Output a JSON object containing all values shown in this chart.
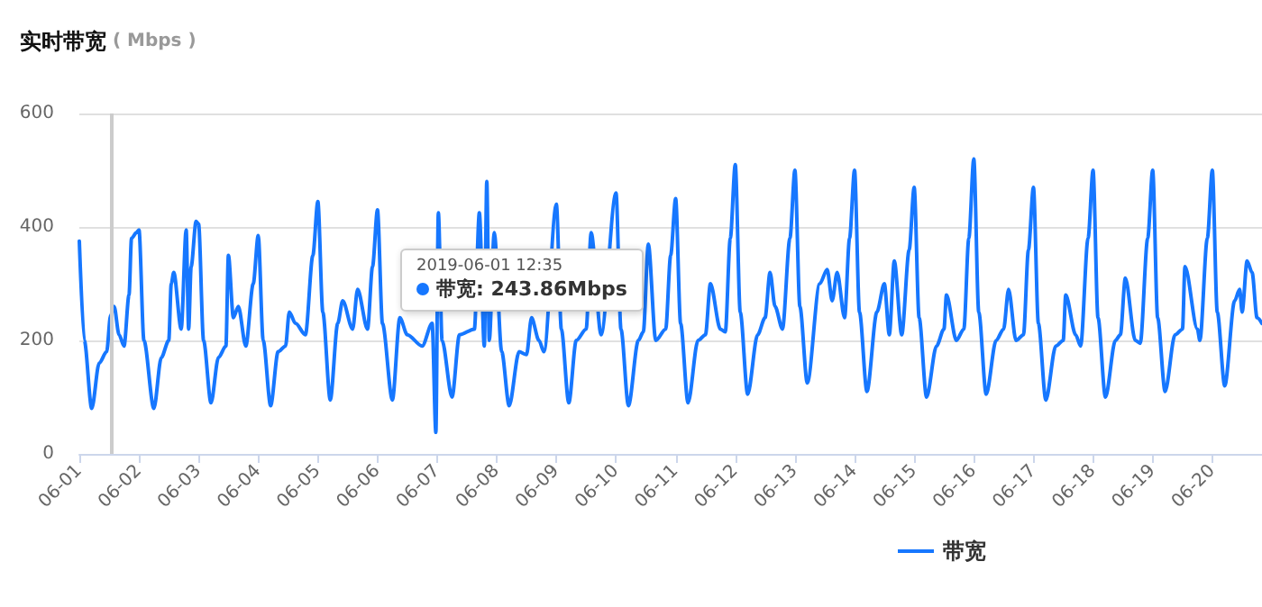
{
  "chart_data": {
    "type": "line",
    "title": "实时带宽",
    "ylabel": "( Mbps )",
    "x": [
      "2019-06-01T00:00",
      "2019-06-01T02:00",
      "2019-06-01T05:00",
      "2019-06-01T08:00",
      "2019-06-01T11:00",
      "2019-06-01T12:35",
      "2019-06-01T14:00",
      "2019-06-01T16:00",
      "2019-06-01T18:00",
      "2019-06-01T20:00",
      "2019-06-01T21:00",
      "2019-06-01T23:00",
      "2019-06-02T00:00",
      "2019-06-02T02:00",
      "2019-06-02T06:00",
      "2019-06-02T09:00",
      "2019-06-02T12:00",
      "2019-06-02T13:00",
      "2019-06-02T14:00",
      "2019-06-02T17:00",
      "2019-06-02T19:00",
      "2019-06-02T20:00",
      "2019-06-02T21:00",
      "2019-06-02T23:00",
      "2019-06-03T00:00",
      "2019-06-03T02:00",
      "2019-06-03T05:00",
      "2019-06-03T08:00",
      "2019-06-03T11:00",
      "2019-06-03T12:00",
      "2019-06-03T14:00",
      "2019-06-03T16:00",
      "2019-06-03T19:00",
      "2019-06-03T22:00",
      "2019-06-04T00:00",
      "2019-06-04T02:00",
      "2019-06-04T05:00",
      "2019-06-04T08:00",
      "2019-06-04T11:00",
      "2019-06-04T12:30",
      "2019-06-04T15:00",
      "2019-06-04T19:00",
      "2019-06-04T22:00",
      "2019-06-05T00:00",
      "2019-06-05T02:00",
      "2019-06-05T05:00",
      "2019-06-05T08:00",
      "2019-06-05T10:00",
      "2019-06-05T14:00",
      "2019-06-05T16:00",
      "2019-06-05T20:00",
      "2019-06-05T22:00",
      "2019-06-06T00:00",
      "2019-06-06T02:00",
      "2019-06-06T06:00",
      "2019-06-06T09:00",
      "2019-06-06T12:00",
      "2019-06-06T14:00",
      "2019-06-06T18:00",
      "2019-06-06T22:00",
      "2019-06-06T23:30",
      "2019-06-07T00:30",
      "2019-06-07T02:00",
      "2019-06-07T06:00",
      "2019-06-07T09:00",
      "2019-06-07T12:00",
      "2019-06-07T15:00",
      "2019-06-07T17:00",
      "2019-06-07T19:00",
      "2019-06-07T20:00",
      "2019-06-07T21:00",
      "2019-06-07T23:00",
      "2019-06-08T02:00",
      "2019-06-08T05:00",
      "2019-06-08T09:00",
      "2019-06-08T12:00",
      "2019-06-08T14:00",
      "2019-06-08T17:00",
      "2019-06-08T19:00",
      "2019-06-08T22:00",
      "2019-06-09T00:00",
      "2019-06-09T02:00",
      "2019-06-09T05:00",
      "2019-06-09T08:00",
      "2019-06-09T12:00",
      "2019-06-09T14:00",
      "2019-06-09T15:00",
      "2019-06-09T18:00",
      "2019-06-09T21:00",
      "2019-06-10T00:00",
      "2019-06-10T02:00",
      "2019-06-10T05:00",
      "2019-06-10T09:00",
      "2019-06-10T11:00",
      "2019-06-10T13:00",
      "2019-06-10T16:00",
      "2019-06-10T20:00",
      "2019-06-10T22:00",
      "2019-06-11T00:00",
      "2019-06-11T02:00",
      "2019-06-11T05:00",
      "2019-06-11T09:00",
      "2019-06-11T12:00",
      "2019-06-11T14:00",
      "2019-06-11T18:00",
      "2019-06-11T20:00",
      "2019-06-11T22:00",
      "2019-06-12T00:00",
      "2019-06-12T02:00",
      "2019-06-12T05:00",
      "2019-06-12T09:00",
      "2019-06-12T12:00",
      "2019-06-12T14:00",
      "2019-06-12T16:00",
      "2019-06-12T19:00",
      "2019-06-12T22:00",
      "2019-06-13T00:00",
      "2019-06-13T02:00",
      "2019-06-13T05:00",
      "2019-06-13T10:00",
      "2019-06-13T13:00",
      "2019-06-13T15:00",
      "2019-06-13T17:00",
      "2019-06-13T20:00",
      "2019-06-13T22:00",
      "2019-06-14T00:00",
      "2019-06-14T02:00",
      "2019-06-14T05:00",
      "2019-06-14T09:00",
      "2019-06-14T12:00",
      "2019-06-14T14:00",
      "2019-06-14T16:00",
      "2019-06-14T19:00",
      "2019-06-14T22:00",
      "2019-06-15T00:00",
      "2019-06-15T02:00",
      "2019-06-15T05:00",
      "2019-06-15T09:00",
      "2019-06-15T12:00",
      "2019-06-15T13:00",
      "2019-06-15T17:00",
      "2019-06-15T20:00",
      "2019-06-15T22:00",
      "2019-06-16T00:00",
      "2019-06-16T02:00",
      "2019-06-16T05:00",
      "2019-06-16T09:00",
      "2019-06-16T12:00",
      "2019-06-16T14:00",
      "2019-06-16T17:00",
      "2019-06-16T20:00",
      "2019-06-16T22:00",
      "2019-06-17T00:00",
      "2019-06-17T02:00",
      "2019-06-17T05:00",
      "2019-06-17T09:00",
      "2019-06-17T12:00",
      "2019-06-17T13:00",
      "2019-06-17T17:00",
      "2019-06-17T19:00",
      "2019-06-17T22:00",
      "2019-06-18T00:00",
      "2019-06-18T02:00",
      "2019-06-18T05:00",
      "2019-06-18T09:00",
      "2019-06-18T11:00",
      "2019-06-18T13:00",
      "2019-06-18T17:00",
      "2019-06-18T19:00",
      "2019-06-18T22:00",
      "2019-06-19T00:00",
      "2019-06-19T02:00",
      "2019-06-19T05:00",
      "2019-06-19T09:00",
      "2019-06-19T12:00",
      "2019-06-19T13:00",
      "2019-06-19T18:00",
      "2019-06-19T19:00",
      "2019-06-19T22:00",
      "2019-06-20T00:00",
      "2019-06-20T02:00",
      "2019-06-20T05:00",
      "2019-06-20T09:00",
      "2019-06-20T11:00",
      "2019-06-20T12:00",
      "2019-06-20T14:00",
      "2019-06-20T16:00",
      "2019-06-20T18:00",
      "2019-06-20T20:00"
    ],
    "series": [
      {
        "name": "带宽",
        "color": "#1677ff",
        "values": [
          375,
          200,
          80,
          160,
          180,
          243.86,
          260,
          210,
          190,
          280,
          380,
          390,
          395,
          200,
          80,
          170,
          200,
          300,
          320,
          220,
          395,
          220,
          330,
          410,
          405,
          200,
          90,
          170,
          190,
          350,
          240,
          260,
          190,
          300,
          385,
          200,
          85,
          180,
          190,
          250,
          230,
          210,
          350,
          445,
          250,
          95,
          230,
          270,
          220,
          290,
          220,
          330,
          430,
          230,
          95,
          240,
          210,
          null,
          190,
          230,
          38,
          425,
          200,
          100,
          210,
          null,
          220,
          425,
          190,
          480,
          200,
          390,
          180,
          85,
          180,
          175,
          240,
          200,
          180,
          null,
          440,
          220,
          90,
          200,
          220,
          390,
          null,
          210,
          null,
          460,
          220,
          85,
          200,
          215,
          370,
          200,
          220,
          350,
          450,
          230,
          90,
          200,
          210,
          300,
          220,
          215,
          380,
          510,
          250,
          105,
          210,
          240,
          320,
          260,
          220,
          380,
          500,
          260,
          125,
          300,
          325,
          270,
          320,
          240,
          380,
          500,
          250,
          110,
          250,
          300,
          210,
          340,
          210,
          360,
          470,
          240,
          100,
          190,
          220,
          280,
          200,
          220,
          380,
          520,
          250,
          105,
          200,
          220,
          290,
          200,
          210,
          360,
          470,
          230,
          95,
          190,
          200,
          280,
          210,
          190,
          380,
          500,
          240,
          100,
          200,
          210,
          310,
          200,
          195,
          380,
          500,
          240,
          110,
          210,
          220,
          330,
          220,
          200,
          380,
          500,
          250,
          120,
          270,
          290,
          250,
          340,
          320,
          240,
          230
        ]
      }
    ],
    "xlim": [
      "2019-06-01",
      "2019-06-20T20:00"
    ],
    "xticks": [
      {
        "value": "2019-06-01",
        "label": "06-01"
      },
      {
        "value": "2019-06-02",
        "label": "06-02"
      },
      {
        "value": "2019-06-03",
        "label": "06-03"
      },
      {
        "value": "2019-06-04",
        "label": "06-04"
      },
      {
        "value": "2019-06-05",
        "label": "06-05"
      },
      {
        "value": "2019-06-06",
        "label": "06-06"
      },
      {
        "value": "2019-06-07",
        "label": "06-07"
      },
      {
        "value": "2019-06-08",
        "label": "06-08"
      },
      {
        "value": "2019-06-09",
        "label": "06-09"
      },
      {
        "value": "2019-06-10",
        "label": "06-10"
      },
      {
        "value": "2019-06-11",
        "label": "06-11"
      },
      {
        "value": "2019-06-12",
        "label": "06-12"
      },
      {
        "value": "2019-06-13",
        "label": "06-13"
      },
      {
        "value": "2019-06-14",
        "label": "06-14"
      },
      {
        "value": "2019-06-15",
        "label": "06-15"
      },
      {
        "value": "2019-06-16",
        "label": "06-16"
      },
      {
        "value": "2019-06-17",
        "label": "06-17"
      },
      {
        "value": "2019-06-18",
        "label": "06-18"
      },
      {
        "value": "2019-06-19",
        "label": "06-19"
      },
      {
        "value": "2019-06-20",
        "label": "06-20"
      }
    ],
    "ylim": [
      0,
      600
    ],
    "yticks": [
      0,
      200,
      400,
      600
    ],
    "grid": "y",
    "legend": "bottom right",
    "marker": "none",
    "line_style": "solid",
    "ref_lines": [
      {
        "axis": "x",
        "value": "2019-06-01T12:35",
        "color": "#cccccc"
      }
    ],
    "annotations": [
      "2019-06-01 12:35\n带宽: 243.86Mbps"
    ]
  }
}
